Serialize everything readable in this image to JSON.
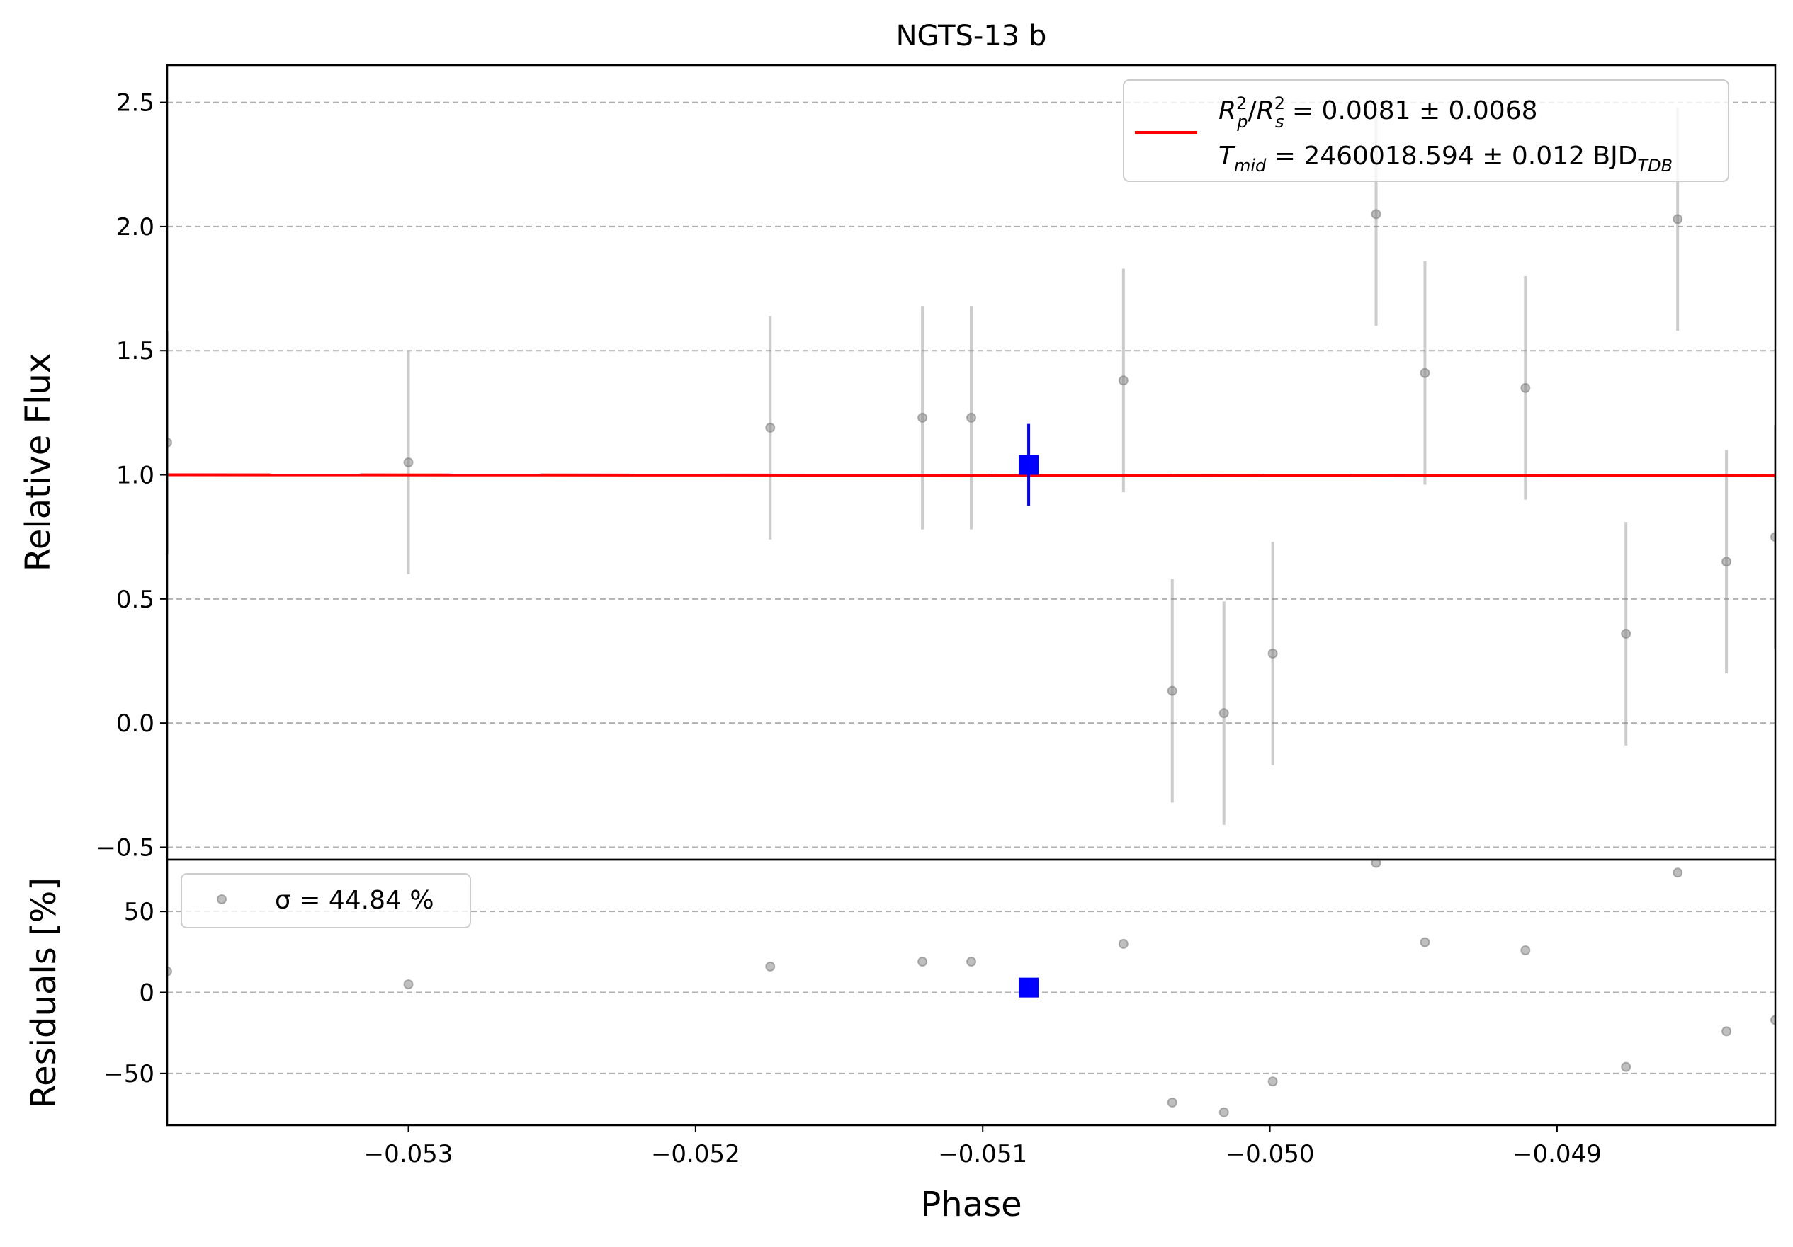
{
  "chart_data": [
    {
      "type": "scatter",
      "panel": "main",
      "title": "NGTS-13 b",
      "ylabel": "Relative Flux",
      "xlim": [
        -0.05384,
        -0.04824
      ],
      "ylim": [
        -0.55,
        2.65
      ],
      "yticks": [
        -0.5,
        0.0,
        0.5,
        1.0,
        1.5,
        2.0,
        2.5
      ],
      "ytick_labels": [
        "−0.5",
        "0.0",
        "0.5",
        "1.0",
        "1.5",
        "2.0",
        "2.5"
      ],
      "grid": "y-dashed",
      "legend": {
        "placement": "upper right",
        "model_line_label": "R_p^2/R_s^2 = 0.0081 ± 0.0068",
        "tmid_label": "T_mid = 2460018.594 ± 0.012 BJD_TDB"
      },
      "model": {
        "name": "transit model",
        "color": "#ff0000",
        "x": [
          -0.05384,
          -0.04824
        ],
        "y": [
          1.0,
          0.997
        ]
      },
      "series": [
        {
          "name": "data",
          "color": "#808080",
          "x": [
            -0.05384,
            -0.053,
            -0.05174,
            -0.05121,
            -0.05104,
            -0.05051,
            -0.05034,
            -0.05016,
            -0.04999,
            -0.04963,
            -0.04946,
            -0.04911,
            -0.04876,
            -0.04858,
            -0.04841,
            -0.04824
          ],
          "y": [
            1.13,
            1.05,
            1.19,
            1.23,
            1.23,
            1.38,
            0.13,
            0.04,
            0.28,
            2.05,
            1.41,
            1.35,
            0.36,
            2.03,
            0.65,
            0.75
          ],
          "yerr": [
            0.45,
            0.45,
            0.45,
            0.45,
            0.45,
            0.45,
            0.45,
            0.45,
            0.45,
            0.45,
            0.45,
            0.45,
            0.45,
            0.45,
            0.45,
            0.45
          ]
        },
        {
          "name": "binned",
          "color": "#0000ff",
          "x": [
            -0.05084
          ],
          "y": [
            1.04
          ],
          "yerr": [
            0.165
          ]
        }
      ]
    },
    {
      "type": "scatter",
      "panel": "residuals",
      "ylabel": "Residuals [%]",
      "xlabel": "Phase",
      "xlim": [
        -0.05384,
        -0.04824
      ],
      "ylim": [
        -82,
        82
      ],
      "yticks": [
        -50,
        0,
        50
      ],
      "ytick_labels": [
        "−50",
        "0",
        "50"
      ],
      "xticks": [
        -0.053,
        -0.052,
        -0.051,
        -0.05,
        -0.049
      ],
      "xtick_labels": [
        "−0.053",
        "−0.052",
        "−0.051",
        "−0.050",
        "−0.049"
      ],
      "grid": "y-dashed",
      "legend": {
        "placement": "upper left",
        "label": "σ = 44.84 %"
      },
      "series": [
        {
          "name": "residuals",
          "color": "#808080",
          "x": [
            -0.05384,
            -0.053,
            -0.05174,
            -0.05121,
            -0.05104,
            -0.05051,
            -0.05034,
            -0.05016,
            -0.04999,
            -0.04963,
            -0.04946,
            -0.04911,
            -0.04876,
            -0.04858,
            -0.04841,
            -0.04824
          ],
          "y": [
            13,
            5,
            16,
            19,
            19,
            30,
            -68,
            -74,
            -55,
            80,
            31,
            26,
            -46,
            74,
            -24,
            -17
          ]
        },
        {
          "name": "binned residual",
          "color": "#0000ff",
          "x": [
            -0.05084
          ],
          "y": [
            3
          ]
        }
      ]
    }
  ]
}
